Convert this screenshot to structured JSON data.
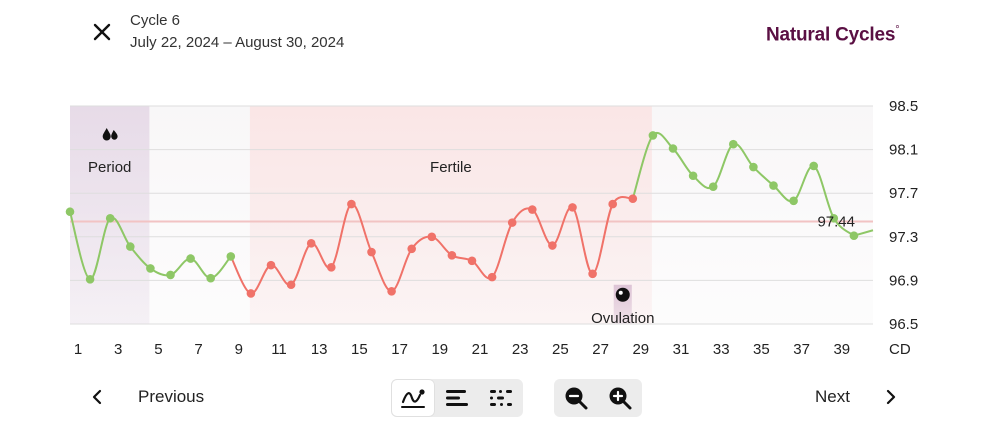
{
  "header": {
    "cycle_title": "Cycle 6",
    "cycle_dates": "July 22, 2024 – August 30, 2024",
    "brand": "Natural Cycles",
    "brand_mark": "°"
  },
  "toolbar": {
    "previous_label": "Previous",
    "next_label": "Next",
    "view_modes": [
      "line-chart-icon",
      "bar-list-icon",
      "dots-icon"
    ],
    "active_view": "line-chart-icon",
    "zoom_out_icon": "zoom-out-icon",
    "zoom_in_icon": "zoom-in-icon"
  },
  "colors": {
    "period_band": "#e7dbe8",
    "fertile_band": "#fae6e6",
    "ovulation_band": "#ddc4d6",
    "line_red": "#f07269",
    "line_green": "#8ec766",
    "coverline": "#f2c3c3",
    "brand": "#5a0f43"
  },
  "chart_data": {
    "type": "line",
    "x_unit_label": "CD",
    "x_ticks": [
      1,
      3,
      5,
      7,
      9,
      11,
      13,
      15,
      17,
      19,
      21,
      23,
      25,
      27,
      29,
      31,
      33,
      35,
      37,
      39
    ],
    "y_ticks": [
      "96.5",
      "96.9",
      "97.3",
      "97.7",
      "98.1",
      "98.5"
    ],
    "ylim": [
      96.5,
      98.5
    ],
    "xlim": [
      1,
      40.95
    ],
    "grid": true,
    "x": [
      1,
      2,
      3,
      4,
      5,
      6,
      7,
      8,
      9,
      10,
      11,
      12,
      13,
      14,
      15,
      16,
      17,
      18,
      19,
      20,
      21,
      22,
      23,
      24,
      25,
      26,
      27,
      28,
      29,
      30,
      31,
      32,
      33,
      34,
      35,
      36,
      37,
      38,
      39,
      40
    ],
    "values": [
      97.53,
      96.91,
      97.47,
      97.21,
      97.01,
      96.95,
      97.1,
      96.92,
      97.12,
      96.78,
      97.04,
      96.86,
      97.24,
      97.02,
      97.6,
      97.16,
      96.8,
      97.19,
      97.3,
      97.13,
      97.08,
      96.93,
      97.43,
      97.55,
      97.22,
      97.57,
      96.96,
      97.6,
      97.65,
      98.23,
      98.11,
      97.86,
      97.76,
      98.15,
      97.94,
      97.77,
      97.63,
      97.95,
      97.47,
      97.31
    ],
    "segments": [
      {
        "name": "",
        "from_day": 1,
        "to_day": 9,
        "color_key": "line_green"
      },
      {
        "name": "",
        "from_day": 9,
        "to_day": 29,
        "color_key": "line_red"
      },
      {
        "name": "",
        "from_day": 29,
        "to_day": 40,
        "color_key": "line_green"
      }
    ],
    "coverline": {
      "value": 97.44,
      "label": "97.44"
    },
    "bands": [
      {
        "label": "Period",
        "from_day": 1,
        "to_day": 4.95,
        "icon": "drops-icon",
        "color_key": "period_band"
      },
      {
        "label": "Fertile",
        "from_day": 9.95,
        "to_day": 29.95,
        "color_key": "fertile_band"
      }
    ],
    "ovulation": {
      "label": "Ovulation",
      "day": 28,
      "icon": "egg-icon"
    }
  }
}
